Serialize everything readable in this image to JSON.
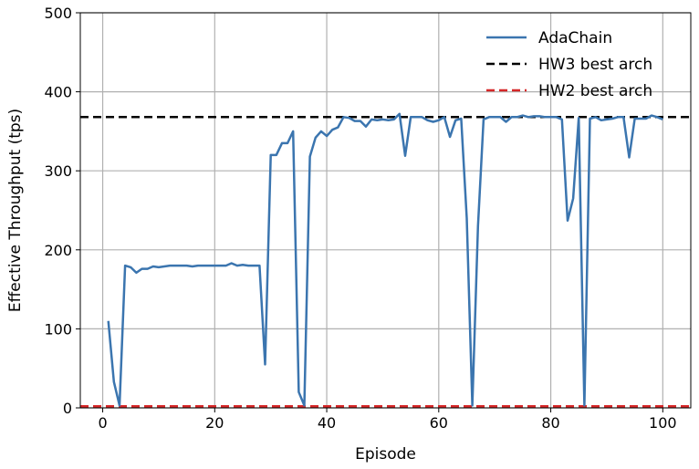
{
  "chart_data": {
    "type": "line",
    "title": "",
    "xlabel": "Episode",
    "ylabel": "Effective Throughput (tps)",
    "xlim": [
      -4,
      105
    ],
    "ylim": [
      0,
      500
    ],
    "x_ticks": [
      0,
      20,
      40,
      60,
      80,
      100
    ],
    "y_ticks": [
      0,
      100,
      200,
      300,
      400,
      500
    ],
    "grid": true,
    "legend_position": "top-right",
    "series": [
      {
        "name": "AdaChain",
        "color": "#3b75af",
        "style": "solid",
        "x": [
          1,
          2,
          3,
          4,
          5,
          6,
          7,
          8,
          9,
          10,
          11,
          12,
          13,
          14,
          15,
          16,
          17,
          18,
          19,
          20,
          21,
          22,
          23,
          24,
          25,
          26,
          27,
          28,
          29,
          30,
          31,
          32,
          33,
          34,
          35,
          36,
          37,
          38,
          39,
          40,
          41,
          42,
          43,
          44,
          45,
          46,
          47,
          48,
          49,
          50,
          51,
          52,
          53,
          54,
          55,
          56,
          57,
          58,
          59,
          60,
          61,
          62,
          63,
          64,
          65,
          66,
          67,
          68,
          69,
          70,
          71,
          72,
          73,
          74,
          75,
          76,
          77,
          78,
          79,
          80,
          81,
          82,
          83,
          84,
          85,
          86,
          87,
          88,
          89,
          90,
          91,
          92,
          93,
          94,
          95,
          96,
          97,
          98,
          99,
          100
        ],
        "values": [
          110,
          33,
          3,
          180,
          178,
          171,
          176,
          176,
          179,
          178,
          179,
          180,
          180,
          180,
          180,
          179,
          180,
          180,
          180,
          180,
          180,
          180,
          183,
          180,
          181,
          180,
          180,
          180,
          55,
          320,
          320,
          335,
          335,
          350,
          20,
          3,
          318,
          342,
          350,
          344,
          352,
          355,
          368,
          367,
          363,
          363,
          356,
          365,
          364,
          365,
          364,
          365,
          372,
          319,
          368,
          368,
          368,
          364,
          362,
          364,
          368,
          343,
          364,
          366,
          240,
          3,
          230,
          365,
          368,
          368,
          368,
          362,
          368,
          368,
          370,
          368,
          369,
          369,
          368,
          368,
          368,
          365,
          237,
          265,
          367,
          3,
          366,
          368,
          364,
          365,
          366,
          368,
          368,
          317,
          366,
          366,
          366,
          370,
          368,
          365
        ]
      },
      {
        "name": "HW3 best arch",
        "color": "#000000",
        "style": "dashed",
        "y": 368
      },
      {
        "name": "HW2 best arch",
        "color": "#d62728",
        "style": "dashed",
        "y": 2
      }
    ]
  }
}
